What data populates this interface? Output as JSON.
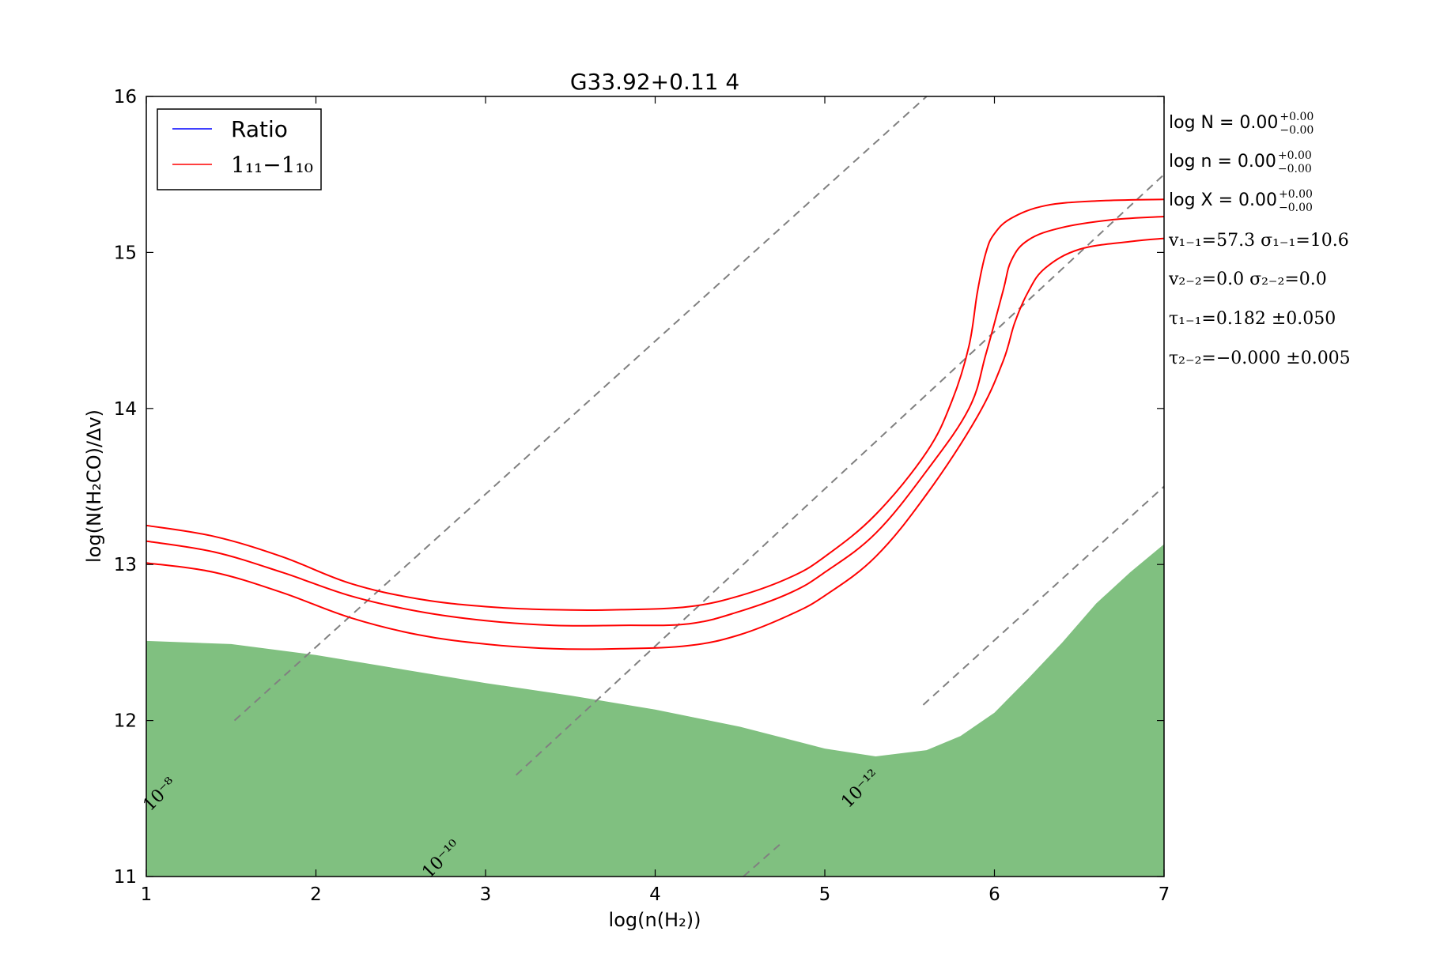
{
  "chart_data": {
    "type": "line",
    "title": "G33.92+0.11 4",
    "xlabel": "log(n(H₂))",
    "ylabel": "log(N(H₂CO)/Δv)",
    "xlim": [
      1,
      7
    ],
    "ylim": [
      11,
      16
    ],
    "xticks": [
      "1",
      "2",
      "3",
      "4",
      "5",
      "6",
      "7"
    ],
    "yticks": [
      "11",
      "12",
      "13",
      "14",
      "15",
      "16"
    ],
    "grid": false,
    "legend": {
      "placement": "top-left",
      "entries": [
        {
          "label": "Ratio",
          "color": "#0000ff"
        },
        {
          "label": "1₁₁−1₁₀",
          "color": "#ff0000"
        }
      ]
    },
    "series": [
      {
        "name": "1₁₁−1₁₀",
        "color": "#ff0000",
        "x": [
          1.0,
          1.4,
          1.8,
          2.2,
          2.6,
          3.0,
          3.4,
          3.8,
          4.2,
          4.5,
          4.8,
          5.0,
          5.3,
          5.6,
          5.75,
          5.85,
          5.9,
          5.95,
          6.0,
          6.1,
          6.3,
          6.6,
          7.0
        ],
        "y": [
          13.25,
          13.18,
          13.05,
          12.88,
          12.78,
          12.73,
          12.71,
          12.71,
          12.73,
          12.8,
          12.92,
          13.05,
          13.32,
          13.72,
          14.05,
          14.4,
          14.75,
          15.0,
          15.12,
          15.22,
          15.3,
          15.33,
          15.34
        ]
      },
      {
        "name": "1₁₁−1₁₀",
        "color": "#ff0000",
        "x": [
          1.0,
          1.4,
          1.8,
          2.2,
          2.6,
          3.0,
          3.4,
          3.8,
          4.2,
          4.5,
          4.8,
          5.0,
          5.3,
          5.6,
          5.85,
          5.95,
          6.05,
          6.1,
          6.2,
          6.4,
          6.7,
          7.0
        ],
        "y": [
          13.15,
          13.08,
          12.95,
          12.8,
          12.7,
          12.64,
          12.61,
          12.61,
          12.62,
          12.7,
          12.82,
          12.95,
          13.2,
          13.6,
          14.0,
          14.35,
          14.75,
          14.95,
          15.08,
          15.16,
          15.21,
          15.23
        ]
      },
      {
        "name": "1₁₁−1₁₀",
        "color": "#ff0000",
        "x": [
          1.0,
          1.4,
          1.8,
          2.2,
          2.6,
          3.0,
          3.4,
          3.8,
          4.2,
          4.5,
          4.8,
          5.0,
          5.3,
          5.6,
          5.9,
          6.05,
          6.12,
          6.2,
          6.3,
          6.5,
          6.8,
          7.0
        ],
        "y": [
          13.01,
          12.95,
          12.82,
          12.66,
          12.55,
          12.49,
          12.46,
          12.46,
          12.48,
          12.55,
          12.68,
          12.8,
          13.05,
          13.45,
          13.95,
          14.3,
          14.55,
          14.75,
          14.9,
          15.02,
          15.07,
          15.09
        ]
      }
    ],
    "shaded_region": {
      "color": "#80c080",
      "x": [
        1.0,
        1.5,
        2.0,
        2.5,
        3.0,
        3.5,
        4.0,
        4.5,
        5.0,
        5.3,
        5.6,
        5.8,
        6.0,
        6.2,
        6.4,
        6.6,
        6.8,
        7.0
      ],
      "y_upper": [
        12.51,
        12.49,
        12.42,
        12.33,
        12.24,
        12.16,
        12.07,
        11.96,
        11.82,
        11.77,
        11.81,
        11.9,
        12.05,
        12.27,
        12.5,
        12.75,
        12.95,
        13.13
      ]
    },
    "reference_lines": [
      {
        "label": "10⁻⁸",
        "x": [
          1.52,
          5.6
        ],
        "y": [
          12.0,
          16.0
        ]
      },
      {
        "label": "10⁻¹⁰",
        "x": [
          3.18,
          7.0
        ],
        "y": [
          11.65,
          15.5
        ]
      },
      {
        "label": "10⁻¹²",
        "x": [
          4.52,
          4.75
        ],
        "y": [
          11.0,
          11.22
        ]
      },
      {
        "label": "10⁻¹²",
        "x": [
          5.58,
          7.0
        ],
        "y": [
          12.1,
          13.5
        ]
      }
    ],
    "annotations": [
      "log N = 0.00",
      "log n = 0.00",
      "log X = 0.00",
      "v₁₋₁=57.3   σ₁₋₁=10.6",
      "v₂₋₂=0.0   σ₂₋₂=0.0",
      "τ₁₋₁=0.182 ±0.050",
      "τ₂₋₂=−0.000 ±0.005"
    ],
    "annotation_errors": {
      "plus": "+0.00",
      "minus": "−0.00"
    }
  }
}
